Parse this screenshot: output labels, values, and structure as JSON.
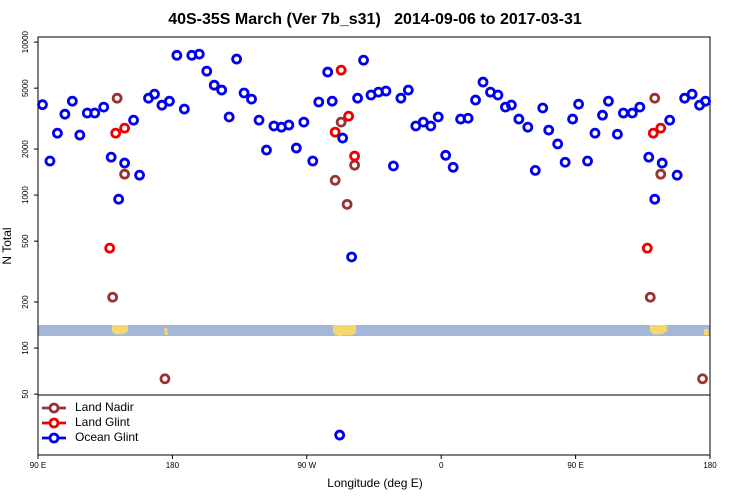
{
  "chart_data": {
    "type": "scatter",
    "title": "40S-35S March (Ver 7b_s31)   2014-09-06 to 2017-03-31",
    "x_label": "Longitude (deg E)",
    "y_label": "N Total",
    "xlim": [
      90,
      540
    ],
    "xticks": [
      {
        "value": 90,
        "label": "90 E"
      },
      180,
      {
        "value": 270,
        "label": "90 W"
      },
      {
        "value": 360,
        "label": "0"
      },
      {
        "value": 450,
        "label": "90 E"
      },
      {
        "value": 540,
        "label": "180"
      }
    ],
    "ylim": [
      20,
      10800
    ],
    "y_scale": "log",
    "yticks": [
      50,
      100,
      200,
      500,
      1000,
      2000,
      5000,
      10000
    ],
    "legend": "lower left",
    "series": [
      {
        "name": "Land Nadir",
        "color": "#993333",
        "x": [
          143,
          148,
          140,
          175,
          289,
          297,
          302,
          293,
          503,
          507,
          500,
          535
        ],
        "values": [
          4300,
          1370,
          215,
          63,
          1250,
          870,
          1570,
          3000,
          4300,
          1370,
          215,
          63
        ]
      },
      {
        "name": "Land Glint",
        "color": "#ee0000",
        "x": [
          138,
          142,
          148,
          293,
          289,
          298,
          302,
          498,
          502,
          507
        ],
        "values": [
          450,
          2540,
          2740,
          6560,
          2580,
          3280,
          1800,
          450,
          2540,
          2740
        ]
      },
      {
        "name": "Ocean Glint",
        "color": "#0000ee",
        "x": [
          93,
          98,
          103,
          108,
          113,
          118,
          123,
          128,
          134,
          139,
          144,
          148,
          154,
          158,
          164,
          168,
          173,
          178,
          183,
          188,
          193,
          198,
          203,
          208,
          213,
          218,
          223,
          228,
          233,
          238,
          243,
          248,
          253,
          258,
          263,
          268,
          274,
          278,
          284,
          287,
          294,
          300,
          304,
          308,
          313,
          318,
          323,
          328,
          333,
          338,
          343,
          348,
          353,
          358,
          363,
          368,
          373,
          378,
          383,
          388,
          393,
          398,
          403,
          407,
          412,
          418,
          423,
          428,
          432,
          438,
          443,
          448,
          452,
          458,
          463,
          468,
          472,
          478,
          482,
          488,
          493,
          499,
          503,
          508,
          513,
          518,
          523,
          528,
          533,
          537,
          292
        ],
        "values": [
          3900,
          1670,
          2540,
          3380,
          4110,
          2470,
          3440,
          3440,
          3760,
          1770,
          940,
          1620,
          3090,
          1350,
          4300,
          4570,
          3870,
          4110,
          8200,
          3650,
          8200,
          8350,
          6460,
          5230,
          4860,
          3240,
          7750,
          4650,
          4240,
          3090,
          1970,
          2830,
          2780,
          2870,
          2030,
          3000,
          1670,
          4060,
          6370,
          4110,
          2360,
          394,
          4300,
          7620,
          4510,
          4710,
          4790,
          1550,
          4300,
          4860,
          2830,
          3000,
          2830,
          3240,
          1820,
          1520,
          3140,
          3180,
          4180,
          5480,
          4710,
          4510,
          3760,
          3880,
          3140,
          2780,
          1450,
          3710,
          2660,
          2160,
          1640,
          3140,
          3930,
          1670,
          2540,
          3330,
          4110,
          2500,
          3440,
          3440,
          3760,
          1770,
          940,
          1620,
          3090,
          1350,
          4300,
          4570,
          3870,
          4110,
          27
        ]
      }
    ]
  }
}
